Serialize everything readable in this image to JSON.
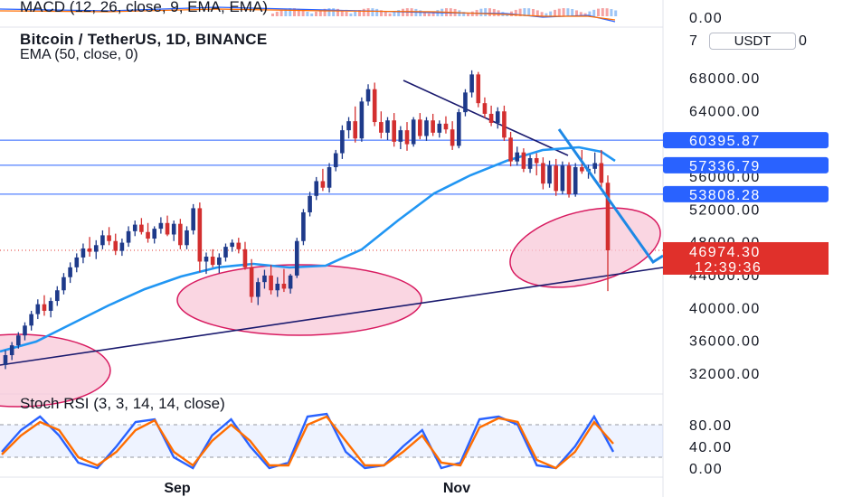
{
  "header": {
    "symbol": "Bitcoin / TetherUS, 1D, BINANCE",
    "ema": "EMA (50, close, 0)",
    "macd": "MACD (12, 26, close, 9, EMA, EMA)",
    "stoch_rsi": "Stoch RSI (3, 3, 14, 14, close)"
  },
  "currency_button": "USDT",
  "price_axis": {
    "ticks": [
      "68000.00",
      "64000.00",
      "56000.00",
      "52000.00",
      "48000.00",
      "44000.00",
      "40000.00",
      "36000.00",
      "32000.00"
    ],
    "partial_labels": {
      "left": "7",
      "right": "0"
    }
  },
  "macd_axis": {
    "ticks": [
      "0.00"
    ]
  },
  "rsi_axis": {
    "ticks": [
      "80.00",
      "40.00",
      "0.00"
    ]
  },
  "time_axis": {
    "ticks": [
      "Sep",
      "Nov"
    ]
  },
  "levels": [
    {
      "label": "60395.87",
      "color": "#2962ff"
    },
    {
      "label": "57336.79",
      "color": "#2962ff"
    },
    {
      "label": "53808.28",
      "color": "#2962ff"
    }
  ],
  "last_price": {
    "value": "46974.30",
    "countdown": "12:39:36",
    "color": "#e0302b"
  },
  "colors": {
    "up": "#1e3a8a",
    "down": "#d32f2f",
    "ema": "#2196f3",
    "trend": "#1a1a6e",
    "ellipse_fill": "#f8c8d8",
    "ellipse_stroke": "#d81b60",
    "stoch_k": "#2962ff",
    "stoch_d": "#ff6d00"
  },
  "chart_data": [
    {
      "type": "candlestick",
      "title": "Bitcoin / TetherUS, 1D, BINANCE",
      "ylim": [
        30000,
        72000
      ],
      "x_ticks": [
        "Sep",
        "Nov"
      ],
      "ohlc": [
        [
          33000,
          34800,
          32500,
          34200
        ],
        [
          34200,
          35800,
          33600,
          35400
        ],
        [
          35400,
          37000,
          35000,
          36600
        ],
        [
          36600,
          38200,
          36000,
          37800
        ],
        [
          37800,
          39600,
          37200,
          39200
        ],
        [
          39200,
          41000,
          38600,
          40400
        ],
        [
          40400,
          41500,
          39000,
          39600
        ],
        [
          39600,
          41200,
          38800,
          40800
        ],
        [
          40800,
          42600,
          40200,
          42100
        ],
        [
          42100,
          44200,
          41600,
          43700
        ],
        [
          43700,
          45500,
          43000,
          44900
        ],
        [
          44900,
          46600,
          44300,
          46100
        ],
        [
          46100,
          47800,
          45400,
          47200
        ],
        [
          47200,
          48600,
          46200,
          46800
        ],
        [
          46800,
          48200,
          45900,
          47600
        ],
        [
          47600,
          49400,
          47100,
          48800
        ],
        [
          48800,
          49800,
          47600,
          48100
        ],
        [
          48100,
          49000,
          46400,
          46900
        ],
        [
          46900,
          48400,
          46300,
          47900
        ],
        [
          47900,
          49900,
          47400,
          49300
        ],
        [
          49300,
          50600,
          48700,
          50100
        ],
        [
          50100,
          50900,
          48900,
          49200
        ],
        [
          49200,
          50300,
          47900,
          48400
        ],
        [
          48400,
          49900,
          47800,
          49600
        ],
        [
          49600,
          51000,
          49000,
          50300
        ],
        [
          50300,
          51200,
          48700,
          48900
        ],
        [
          48900,
          50600,
          48100,
          50200
        ],
        [
          50200,
          50800,
          47100,
          47600
        ],
        [
          47600,
          49900,
          47100,
          49400
        ],
        [
          49400,
          52600,
          48900,
          52100
        ],
        [
          52100,
          52800,
          44300,
          45600
        ],
        [
          45600,
          46700,
          44100,
          46200
        ],
        [
          46200,
          47100,
          44900,
          45200
        ],
        [
          45200,
          46600,
          44200,
          46100
        ],
        [
          46100,
          47800,
          45600,
          47400
        ],
        [
          47400,
          48300,
          46800,
          47900
        ],
        [
          47900,
          48500,
          46600,
          47100
        ],
        [
          47100,
          48000,
          44600,
          44900
        ],
        [
          44900,
          45900,
          40600,
          41300
        ],
        [
          41300,
          43600,
          40300,
          43100
        ],
        [
          43100,
          44600,
          42300,
          43900
        ],
        [
          43900,
          45200,
          41600,
          42100
        ],
        [
          42100,
          43700,
          41300,
          42900
        ],
        [
          42900,
          44700,
          41900,
          42300
        ],
        [
          42300,
          44100,
          41700,
          43900
        ],
        [
          43900,
          48500,
          43600,
          48100
        ],
        [
          48100,
          52000,
          47600,
          51600
        ],
        [
          51600,
          54100,
          51100,
          53600
        ],
        [
          53600,
          55900,
          53100,
          55400
        ],
        [
          55400,
          56900,
          54200,
          54600
        ],
        [
          54600,
          57600,
          54000,
          57100
        ],
        [
          57100,
          59200,
          56600,
          58800
        ],
        [
          58800,
          62200,
          58100,
          61600
        ],
        [
          61600,
          63200,
          60600,
          62700
        ],
        [
          62700,
          64500,
          60100,
          60600
        ],
        [
          60600,
          65600,
          60200,
          65100
        ],
        [
          65100,
          67200,
          64600,
          66600
        ],
        [
          66600,
          67400,
          62100,
          62600
        ],
        [
          62600,
          63900,
          60600,
          61300
        ],
        [
          61300,
          63200,
          60400,
          62800
        ],
        [
          62800,
          63700,
          59600,
          60200
        ],
        [
          60200,
          62100,
          59300,
          61600
        ],
        [
          61600,
          62600,
          59100,
          59900
        ],
        [
          59900,
          63200,
          59600,
          62900
        ],
        [
          62900,
          63700,
          60500,
          60900
        ],
        [
          60900,
          63200,
          60300,
          62800
        ],
        [
          62800,
          63600,
          60900,
          61300
        ],
        [
          61300,
          62800,
          60700,
          62400
        ],
        [
          62400,
          63300,
          61200,
          61700
        ],
        [
          61700,
          62700,
          59200,
          59700
        ],
        [
          59700,
          64200,
          59400,
          63800
        ],
        [
          63800,
          66600,
          63300,
          66200
        ],
        [
          66200,
          68900,
          65600,
          68400
        ],
        [
          68400,
          68700,
          64400,
          64900
        ],
        [
          64900,
          65600,
          63100,
          63600
        ],
        [
          63600,
          64600,
          62100,
          62500
        ],
        [
          62500,
          64400,
          61800,
          63900
        ],
        [
          63900,
          64600,
          60300,
          60700
        ],
        [
          60700,
          61400,
          57200,
          57800
        ],
        [
          57800,
          59600,
          57300,
          58900
        ],
        [
          58900,
          59400,
          56500,
          56900
        ],
        [
          56900,
          58600,
          56400,
          58200
        ],
        [
          58200,
          58800,
          56100,
          57600
        ],
        [
          57600,
          58300,
          54400,
          55100
        ],
        [
          55100,
          57900,
          54600,
          57300
        ],
        [
          57300,
          58100,
          53600,
          54200
        ],
        [
          54200,
          57800,
          53800,
          57300
        ],
        [
          57300,
          57700,
          53400,
          53800
        ],
        [
          53800,
          57600,
          53500,
          57100
        ],
        [
          57100,
          59200,
          56300,
          56600
        ],
        [
          56600,
          57400,
          55700,
          56900
        ],
        [
          56900,
          58900,
          56300,
          57600
        ],
        [
          57600,
          59200,
          54600,
          55200
        ],
        [
          55200,
          56100,
          42000,
          46974
        ]
      ]
    },
    {
      "type": "line",
      "name": "EMA (50, close, 0)",
      "x": [
        0,
        25,
        50,
        75,
        94
      ],
      "values": [
        34500,
        41600,
        46500,
        57200,
        57700
      ]
    },
    {
      "type": "line",
      "name": "Stoch RSI (3, 3, 14, 14, close)",
      "ylim": [
        0,
        100
      ],
      "values_k": [
        30,
        70,
        95,
        60,
        10,
        0,
        40,
        85,
        90,
        20,
        0,
        60,
        90,
        40,
        0,
        10,
        95,
        100,
        30,
        0,
        5,
        40,
        70,
        0,
        10,
        90,
        95,
        80,
        5,
        0,
        40,
        95,
        30
      ],
      "values_d": [
        25,
        60,
        85,
        70,
        20,
        5,
        30,
        70,
        88,
        30,
        5,
        50,
        80,
        50,
        5,
        5,
        80,
        95,
        50,
        5,
        5,
        30,
        60,
        10,
        5,
        75,
        92,
        85,
        15,
        0,
        30,
        85,
        45
      ]
    }
  ]
}
